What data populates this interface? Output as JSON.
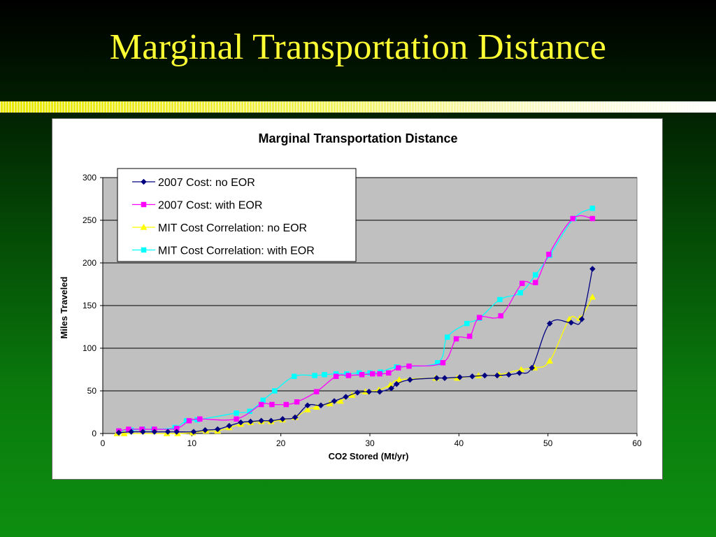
{
  "slide": {
    "title": "Marginal Transportation Distance"
  },
  "chart_data": {
    "type": "line",
    "title": "Marginal Transportation Distance",
    "xlabel": "CO2 Stored (Mt/yr)",
    "ylabel": "Miles Traveled",
    "xlim": [
      0,
      60
    ],
    "ylim": [
      0,
      300
    ],
    "x_ticks": [
      0,
      10,
      20,
      30,
      40,
      50,
      60
    ],
    "y_ticks": [
      0,
      50,
      100,
      150,
      200,
      250,
      300
    ],
    "grid": "horizontal",
    "legend_position": "top-left",
    "series": [
      {
        "name": "2007 Cost: no EOR",
        "color": "#000080",
        "marker": "diamond",
        "points": [
          [
            1.8,
            1
          ],
          [
            3.2,
            2
          ],
          [
            4.5,
            2
          ],
          [
            5.8,
            2
          ],
          [
            7.3,
            2
          ],
          [
            8.3,
            2
          ],
          [
            10.2,
            2
          ],
          [
            11.5,
            4
          ],
          [
            12.9,
            5
          ],
          [
            14.2,
            9
          ],
          [
            15.5,
            13
          ],
          [
            16.6,
            14
          ],
          [
            17.8,
            15
          ],
          [
            18.9,
            15
          ],
          [
            20.2,
            17
          ],
          [
            21.6,
            19
          ],
          [
            23.0,
            33
          ],
          [
            24.5,
            33
          ],
          [
            26.0,
            38
          ],
          [
            27.3,
            43
          ],
          [
            28.6,
            48
          ],
          [
            29.9,
            49
          ],
          [
            31.1,
            49
          ],
          [
            32.4,
            53
          ],
          [
            33.0,
            58
          ],
          [
            34.5,
            63
          ],
          [
            37.5,
            65
          ],
          [
            38.4,
            65
          ],
          [
            40.1,
            66
          ],
          [
            41.5,
            67
          ],
          [
            42.9,
            68
          ],
          [
            44.3,
            68
          ],
          [
            45.6,
            69
          ],
          [
            46.8,
            71
          ],
          [
            48.2,
            77
          ],
          [
            50.2,
            129
          ],
          [
            52.6,
            130
          ],
          [
            53.8,
            134
          ],
          [
            55.0,
            193
          ]
        ]
      },
      {
        "name": "2007 Cost: with EOR",
        "color": "#ff00ff",
        "marker": "square",
        "points": [
          [
            1.8,
            3
          ],
          [
            2.9,
            5
          ],
          [
            4.4,
            5
          ],
          [
            5.8,
            5
          ],
          [
            8.3,
            6
          ],
          [
            9.7,
            15
          ],
          [
            10.9,
            17
          ],
          [
            15.0,
            17
          ],
          [
            17.8,
            34
          ],
          [
            19.0,
            34
          ],
          [
            20.6,
            34
          ],
          [
            21.8,
            37
          ],
          [
            24.0,
            49
          ],
          [
            26.2,
            67
          ],
          [
            27.6,
            68
          ],
          [
            29.1,
            69
          ],
          [
            30.3,
            70
          ],
          [
            31.1,
            70
          ],
          [
            32.1,
            71
          ],
          [
            33.2,
            77
          ],
          [
            34.4,
            79
          ],
          [
            38.2,
            83
          ],
          [
            39.7,
            111
          ],
          [
            41.2,
            114
          ],
          [
            42.3,
            136
          ],
          [
            44.7,
            138
          ],
          [
            47.1,
            176
          ],
          [
            48.6,
            177
          ],
          [
            50.1,
            210
          ],
          [
            52.8,
            252
          ],
          [
            55.0,
            252
          ]
        ]
      },
      {
        "name": "MIT Cost Correlation: no EOR",
        "color": "#ffff00",
        "marker": "triangle",
        "points": [
          [
            1.6,
            0
          ],
          [
            2.4,
            0
          ],
          [
            7.2,
            0
          ],
          [
            8.4,
            0
          ],
          [
            10.1,
            1
          ],
          [
            11.6,
            3
          ],
          [
            12.9,
            3
          ],
          [
            14.2,
            7
          ],
          [
            15.5,
            11
          ],
          [
            16.6,
            13
          ],
          [
            17.8,
            14
          ],
          [
            18.9,
            14
          ],
          [
            20.2,
            16
          ],
          [
            21.6,
            19
          ],
          [
            23.0,
            28
          ],
          [
            24.0,
            31
          ],
          [
            25.5,
            35
          ],
          [
            26.7,
            38
          ],
          [
            28.0,
            45
          ],
          [
            29.5,
            49
          ],
          [
            31.0,
            51
          ],
          [
            32.3,
            57
          ],
          [
            33.3,
            63
          ],
          [
            37.4,
            65
          ],
          [
            39.8,
            65
          ],
          [
            42.2,
            68
          ],
          [
            44.5,
            69
          ],
          [
            47.0,
            75
          ],
          [
            48.5,
            77
          ],
          [
            50.2,
            85
          ],
          [
            52.4,
            134
          ],
          [
            53.6,
            135
          ],
          [
            55.0,
            160
          ]
        ]
      },
      {
        "name": "MIT Cost Correlation: with EOR",
        "color": "#00ffff",
        "marker": "square",
        "points": [
          [
            1.8,
            3
          ],
          [
            3.2,
            4
          ],
          [
            4.5,
            5
          ],
          [
            5.7,
            5
          ],
          [
            8.1,
            7
          ],
          [
            9.4,
            15
          ],
          [
            10.6,
            16
          ],
          [
            15.0,
            24
          ],
          [
            16.5,
            26
          ],
          [
            18.0,
            39
          ],
          [
            19.3,
            50
          ],
          [
            21.5,
            67
          ],
          [
            23.8,
            68
          ],
          [
            24.9,
            69
          ],
          [
            26.2,
            70
          ],
          [
            27.4,
            70
          ],
          [
            28.8,
            71
          ],
          [
            30.0,
            71
          ],
          [
            31.2,
            72
          ],
          [
            33.0,
            78
          ],
          [
            37.6,
            83
          ],
          [
            38.7,
            113
          ],
          [
            40.9,
            129
          ],
          [
            42.3,
            135
          ],
          [
            44.6,
            157
          ],
          [
            46.9,
            165
          ],
          [
            48.6,
            186
          ],
          [
            50.2,
            209
          ],
          [
            52.9,
            252
          ],
          [
            55.0,
            264
          ]
        ]
      }
    ]
  }
}
